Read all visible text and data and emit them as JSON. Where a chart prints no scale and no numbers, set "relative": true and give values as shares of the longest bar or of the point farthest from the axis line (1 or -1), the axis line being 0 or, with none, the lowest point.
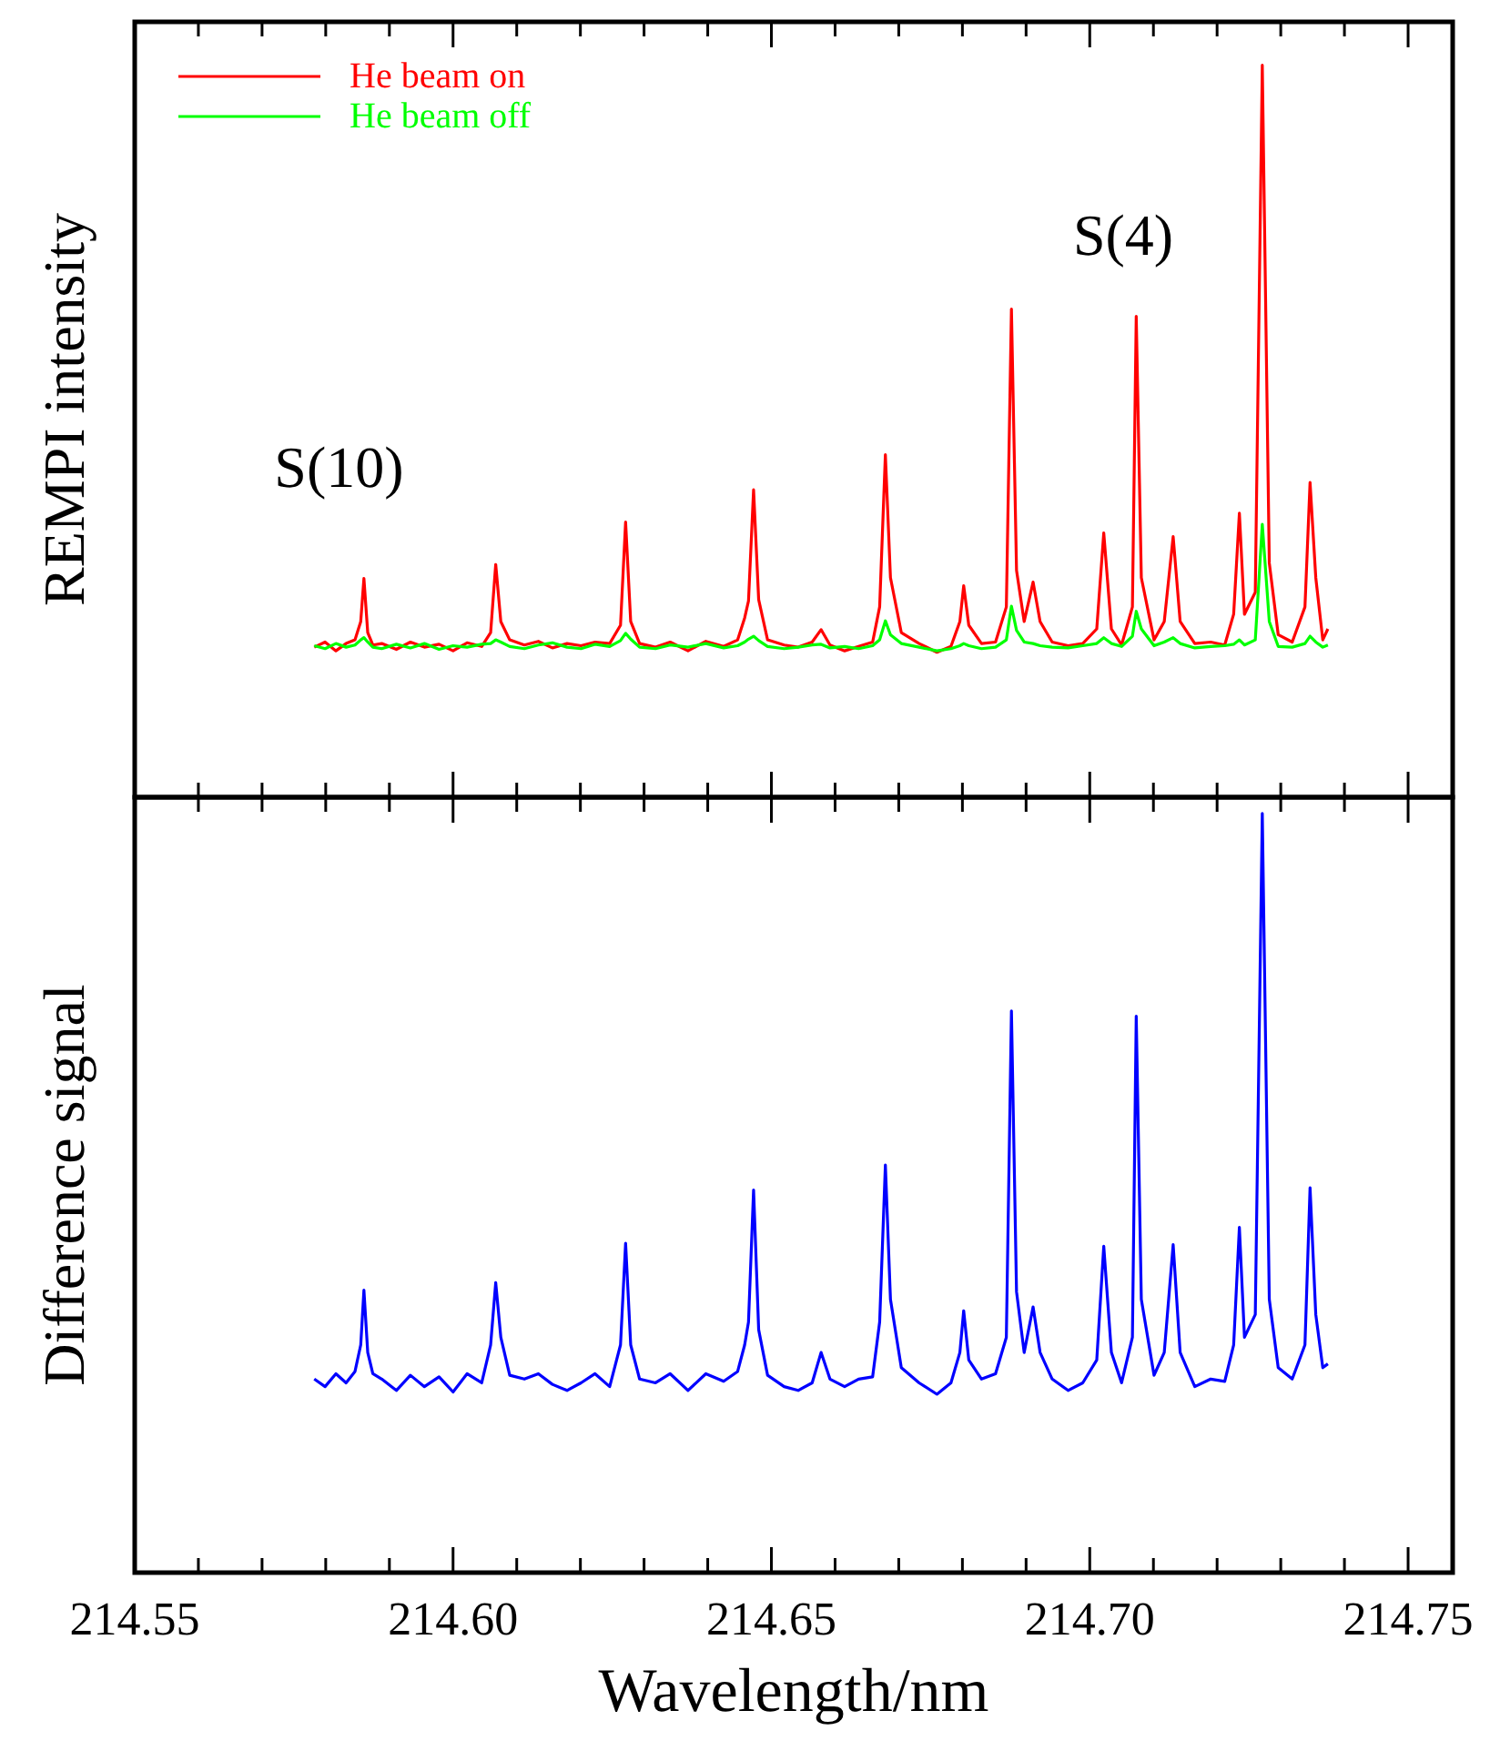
{
  "chart_data": [
    {
      "type": "line",
      "ylabel": "REMPI intensity",
      "relative": true,
      "legend": "top left",
      "tick_labels": false,
      "xlim": [
        214.55,
        214.757
      ],
      "xticks": [
        214.55,
        {
          "value": 214.56,
          "label": null
        },
        {
          "value": 214.57,
          "label": null
        },
        {
          "value": 214.58,
          "label": null
        },
        {
          "value": 214.59,
          "label": null
        },
        214.6,
        {
          "value": 214.61,
          "label": null
        },
        {
          "value": 214.62,
          "label": null
        },
        {
          "value": 214.63,
          "label": null
        },
        {
          "value": 214.64,
          "label": null
        },
        214.65,
        {
          "value": 214.66,
          "label": null
        },
        {
          "value": 214.67,
          "label": null
        },
        {
          "value": 214.68,
          "label": null
        },
        {
          "value": 214.69,
          "label": null
        },
        214.7,
        {
          "value": 214.71,
          "label": null
        },
        {
          "value": 214.72,
          "label": null
        },
        {
          "value": 214.73,
          "label": null
        },
        {
          "value": 214.74,
          "label": null
        },
        214.75
      ],
      "annotations": [
        "S(10)",
        "S(4)"
      ],
      "x": [
        214.5782,
        214.5799,
        214.5816,
        214.5832,
        214.5846,
        214.5855,
        214.586,
        214.5866,
        214.5874,
        214.5888,
        214.5911,
        214.5933,
        214.5955,
        214.5978,
        214.6,
        214.6022,
        214.6045,
        214.6059,
        214.6067,
        214.6075,
        214.6089,
        214.6112,
        214.6134,
        214.6156,
        214.6179,
        214.6201,
        214.6223,
        214.6246,
        214.6263,
        214.6271,
        214.6279,
        214.6293,
        214.6318,
        214.6341,
        214.6369,
        214.6397,
        214.6425,
        214.6447,
        214.6458,
        214.6464,
        214.6472,
        214.648,
        214.6494,
        214.652,
        214.6542,
        214.6564,
        214.6578,
        214.6592,
        214.6615,
        214.6637,
        214.6659,
        214.667,
        214.6679,
        214.6687,
        214.6704,
        214.6732,
        214.676,
        214.6782,
        214.6796,
        214.6802,
        214.681,
        214.683,
        214.6852,
        214.6869,
        214.6877,
        214.6885,
        214.6897,
        214.6911,
        214.6922,
        214.6941,
        214.6966,
        214.6989,
        214.7011,
        214.7022,
        214.7034,
        214.705,
        214.7067,
        214.7073,
        214.7081,
        214.7101,
        214.7117,
        214.7131,
        214.7142,
        214.7165,
        214.719,
        214.7212,
        214.7226,
        214.7235,
        214.7243,
        214.726,
        214.7271,
        214.7282,
        214.7296,
        214.7318,
        214.7338,
        214.7346,
        214.7355,
        214.7366,
        214.7374
      ],
      "series": [
        {
          "name": "He beam on",
          "color": "#ff0000",
          "values": [
            0.205,
            0.212,
            0.2,
            0.21,
            0.215,
            0.24,
            0.299,
            0.225,
            0.208,
            0.21,
            0.202,
            0.212,
            0.205,
            0.209,
            0.2,
            0.211,
            0.206,
            0.225,
            0.318,
            0.24,
            0.215,
            0.208,
            0.213,
            0.204,
            0.21,
            0.207,
            0.212,
            0.21,
            0.235,
            0.376,
            0.24,
            0.21,
            0.205,
            0.212,
            0.2,
            0.213,
            0.206,
            0.215,
            0.245,
            0.268,
            0.42,
            0.27,
            0.215,
            0.208,
            0.205,
            0.212,
            0.229,
            0.208,
            0.2,
            0.206,
            0.212,
            0.26,
            0.468,
            0.3,
            0.225,
            0.21,
            0.198,
            0.206,
            0.24,
            0.289,
            0.235,
            0.21,
            0.212,
            0.26,
            0.667,
            0.31,
            0.24,
            0.294,
            0.24,
            0.212,
            0.207,
            0.21,
            0.23,
            0.361,
            0.23,
            0.208,
            0.26,
            0.657,
            0.3,
            0.215,
            0.24,
            0.356,
            0.24,
            0.21,
            0.212,
            0.208,
            0.25,
            0.388,
            0.25,
            0.28,
            1.0,
            0.32,
            0.222,
            0.212,
            0.26,
            0.43,
            0.3,
            0.215,
            0.23
          ]
        },
        {
          "name": "He beam off",
          "color": "#00ff00",
          "values": [
            0.207,
            0.203,
            0.21,
            0.205,
            0.208,
            0.215,
            0.218,
            0.212,
            0.205,
            0.203,
            0.209,
            0.204,
            0.21,
            0.202,
            0.207,
            0.205,
            0.209,
            0.21,
            0.215,
            0.212,
            0.206,
            0.203,
            0.208,
            0.211,
            0.205,
            0.203,
            0.209,
            0.206,
            0.214,
            0.224,
            0.216,
            0.205,
            0.203,
            0.208,
            0.205,
            0.21,
            0.204,
            0.207,
            0.212,
            0.216,
            0.22,
            0.214,
            0.206,
            0.203,
            0.205,
            0.208,
            0.209,
            0.204,
            0.206,
            0.203,
            0.207,
            0.215,
            0.241,
            0.222,
            0.21,
            0.205,
            0.2,
            0.203,
            0.207,
            0.21,
            0.207,
            0.203,
            0.205,
            0.215,
            0.261,
            0.228,
            0.212,
            0.21,
            0.207,
            0.205,
            0.204,
            0.207,
            0.21,
            0.218,
            0.21,
            0.206,
            0.22,
            0.254,
            0.23,
            0.207,
            0.212,
            0.218,
            0.21,
            0.204,
            0.206,
            0.207,
            0.209,
            0.215,
            0.208,
            0.215,
            0.373,
            0.24,
            0.206,
            0.205,
            0.21,
            0.22,
            0.212,
            0.205,
            0.208
          ]
        }
      ]
    },
    {
      "type": "line",
      "ylabel": "Difference signal",
      "xlabel": "Wavelength/nm",
      "relative": true,
      "tick_labels": "x",
      "xlim": [
        214.55,
        214.757
      ],
      "xticks": [
        214.55,
        {
          "value": 214.56,
          "label": null
        },
        {
          "value": 214.57,
          "label": null
        },
        {
          "value": 214.58,
          "label": null
        },
        {
          "value": 214.59,
          "label": null
        },
        {
          "value": 214.6,
          "label": "214.60"
        },
        {
          "value": 214.61,
          "label": null
        },
        {
          "value": 214.62,
          "label": null
        },
        {
          "value": 214.63,
          "label": null
        },
        {
          "value": 214.64,
          "label": null
        },
        214.65,
        {
          "value": 214.66,
          "label": null
        },
        {
          "value": 214.67,
          "label": null
        },
        {
          "value": 214.68,
          "label": null
        },
        {
          "value": 214.69,
          "label": null
        },
        {
          "value": 214.7,
          "label": "214.70"
        },
        {
          "value": 214.71,
          "label": null
        },
        {
          "value": 214.72,
          "label": null
        },
        {
          "value": 214.73,
          "label": null
        },
        {
          "value": 214.74,
          "label": null
        },
        214.75
      ],
      "x": [
        214.5782,
        214.5799,
        214.5816,
        214.5832,
        214.5846,
        214.5855,
        214.586,
        214.5866,
        214.5874,
        214.5888,
        214.5911,
        214.5933,
        214.5955,
        214.5978,
        214.6,
        214.6022,
        214.6045,
        214.6059,
        214.6067,
        214.6075,
        214.6089,
        214.6112,
        214.6134,
        214.6156,
        214.6179,
        214.6201,
        214.6223,
        214.6246,
        214.6263,
        214.6271,
        214.6279,
        214.6293,
        214.6318,
        214.6341,
        214.6369,
        214.6397,
        214.6425,
        214.6447,
        214.6458,
        214.6464,
        214.6472,
        214.648,
        214.6494,
        214.652,
        214.6542,
        214.6564,
        214.6578,
        214.6592,
        214.6615,
        214.6637,
        214.6659,
        214.667,
        214.6679,
        214.6687,
        214.6704,
        214.6732,
        214.676,
        214.6782,
        214.6796,
        214.6802,
        214.681,
        214.683,
        214.6852,
        214.6869,
        214.6877,
        214.6885,
        214.6897,
        214.6911,
        214.6922,
        214.6941,
        214.6966,
        214.6989,
        214.7011,
        214.7022,
        214.7034,
        214.705,
        214.7067,
        214.7073,
        214.7081,
        214.7101,
        214.7117,
        214.7131,
        214.7142,
        214.7165,
        214.719,
        214.7212,
        214.7226,
        214.7235,
        214.7243,
        214.726,
        214.7271,
        214.7282,
        214.7296,
        214.7318,
        214.7338,
        214.7346,
        214.7355,
        214.7366,
        214.7374
      ],
      "series": [
        {
          "color": "#0000ff",
          "values": [
            0.255,
            0.245,
            0.262,
            0.25,
            0.265,
            0.3,
            0.372,
            0.29,
            0.262,
            0.255,
            0.24,
            0.26,
            0.245,
            0.258,
            0.238,
            0.262,
            0.25,
            0.3,
            0.382,
            0.31,
            0.26,
            0.255,
            0.262,
            0.248,
            0.24,
            0.25,
            0.262,
            0.245,
            0.3,
            0.434,
            0.3,
            0.255,
            0.25,
            0.262,
            0.24,
            0.262,
            0.252,
            0.265,
            0.3,
            0.33,
            0.504,
            0.32,
            0.26,
            0.245,
            0.24,
            0.25,
            0.29,
            0.255,
            0.245,
            0.255,
            0.258,
            0.33,
            0.537,
            0.36,
            0.27,
            0.25,
            0.235,
            0.25,
            0.29,
            0.345,
            0.28,
            0.255,
            0.262,
            0.31,
            0.74,
            0.37,
            0.29,
            0.35,
            0.29,
            0.255,
            0.24,
            0.25,
            0.28,
            0.43,
            0.29,
            0.25,
            0.31,
            0.733,
            0.36,
            0.26,
            0.29,
            0.432,
            0.29,
            0.245,
            0.255,
            0.252,
            0.3,
            0.455,
            0.31,
            0.34,
            1.0,
            0.36,
            0.27,
            0.255,
            0.3,
            0.507,
            0.34,
            0.27,
            0.275
          ]
        }
      ]
    }
  ]
}
